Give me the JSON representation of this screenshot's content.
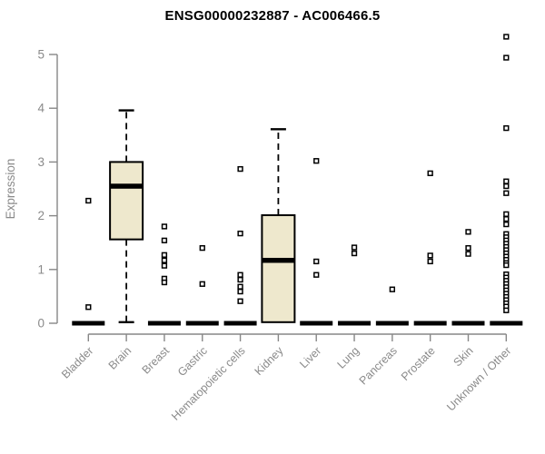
{
  "title": "ENSG00000232887 - AC006466.5",
  "colors": {
    "box_fill": "#EEE8CD",
    "box_stroke": "#000000",
    "axis": "#878787",
    "label_text": "#8A8A8A",
    "point_fill": "#ffffff",
    "background": "#ffffff"
  },
  "chart_data": {
    "type": "boxplot",
    "title": "ENSG00000232887 - AC006466.5",
    "xlabel": "",
    "ylabel": "Expression",
    "ylim": [
      0,
      5
    ],
    "yticks": [
      0,
      1,
      2,
      3,
      4,
      5
    ],
    "grid": false,
    "categories": [
      "Bladder",
      "Brain",
      "Breast",
      "Gastric",
      "Hematopoietic cells",
      "Kidney",
      "Liver",
      "Lung",
      "Pancreas",
      "Prostate",
      "Skin",
      "Unknown / Other"
    ],
    "boxes": [
      {
        "category": "Bladder",
        "q1": 0,
        "median": 0,
        "q3": 0,
        "whisker_low": 0,
        "whisker_high": 0,
        "outliers": [
          2.28,
          0.3
        ]
      },
      {
        "category": "Brain",
        "q1": 1.56,
        "median": 2.55,
        "q3": 3.0,
        "whisker_low": 0.02,
        "whisker_high": 3.96,
        "outliers": []
      },
      {
        "category": "Breast",
        "q1": 0,
        "median": 0,
        "q3": 0,
        "whisker_low": 0,
        "whisker_high": 0,
        "outliers": [
          1.8,
          1.54,
          1.27,
          1.17,
          1.07,
          0.83,
          0.76
        ]
      },
      {
        "category": "Gastric",
        "q1": 0,
        "median": 0,
        "q3": 0,
        "whisker_low": 0,
        "whisker_high": 0,
        "outliers": [
          1.4,
          0.73
        ]
      },
      {
        "category": "Hematopoietic cells",
        "q1": 0,
        "median": 0,
        "q3": 0,
        "whisker_low": 0,
        "whisker_high": 0,
        "outliers": [
          2.87,
          1.67,
          0.9,
          0.81,
          0.68,
          0.59,
          0.41
        ]
      },
      {
        "category": "Kidney",
        "q1": 0.02,
        "median": 1.17,
        "q3": 2.01,
        "whisker_low": 0.02,
        "whisker_high": 3.61,
        "outliers": []
      },
      {
        "category": "Liver",
        "q1": 0,
        "median": 0,
        "q3": 0,
        "whisker_low": 0,
        "whisker_high": 0,
        "outliers": [
          3.02,
          1.15,
          0.9
        ]
      },
      {
        "category": "Lung",
        "q1": 0,
        "median": 0,
        "q3": 0,
        "whisker_low": 0,
        "whisker_high": 0,
        "outliers": [
          1.41,
          1.3
        ]
      },
      {
        "category": "Pancreas",
        "q1": 0,
        "median": 0,
        "q3": 0,
        "whisker_low": 0,
        "whisker_high": 0,
        "outliers": [
          0.63
        ]
      },
      {
        "category": "Prostate",
        "q1": 0,
        "median": 0,
        "q3": 0,
        "whisker_low": 0,
        "whisker_high": 0,
        "outliers": [
          2.79,
          1.26,
          1.15
        ]
      },
      {
        "category": "Skin",
        "q1": 0,
        "median": 0,
        "q3": 0,
        "whisker_low": 0,
        "whisker_high": 0,
        "outliers": [
          1.7,
          1.4,
          1.29
        ]
      },
      {
        "category": "Unknown / Other",
        "q1": 0,
        "median": 0,
        "q3": 0,
        "whisker_low": 0,
        "whisker_high": 0,
        "outliers": [
          5.33,
          4.94,
          3.63,
          2.64,
          2.55,
          2.42,
          2.03,
          1.94,
          1.84,
          1.66,
          1.6,
          1.54,
          1.48,
          1.42,
          1.36,
          1.3,
          1.24,
          1.18,
          1.12,
          1.08,
          0.91,
          0.85,
          0.79,
          0.73,
          0.67,
          0.61,
          0.55,
          0.49,
          0.43,
          0.37,
          0.31,
          0.24
        ]
      }
    ]
  }
}
